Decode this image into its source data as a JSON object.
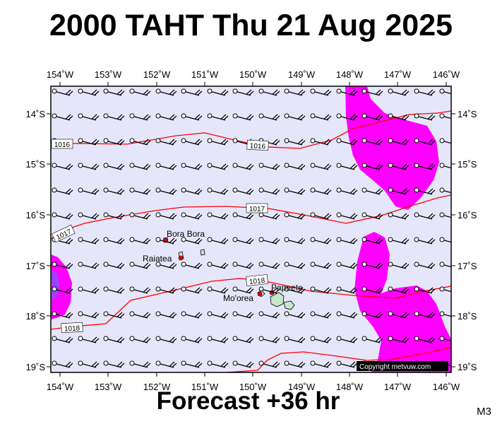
{
  "title": "2000 TAHT Thu 21 Aug 2025",
  "subtitle": "Forecast +36 hr",
  "model": "M3",
  "copyright": "Copyright metvuw.com",
  "colors": {
    "ocean": "#e6e6fa",
    "rain": "#ff00ff",
    "rain_heavy": "#a040ff",
    "isobar": "#ff0000",
    "land": "#c8e6c8"
  },
  "axes": {
    "top_lon_labels": [
      "154˚W",
      "153˚W",
      "152˚W",
      "151˚W",
      "150˚W",
      "149˚W",
      "148˚W",
      "147˚W",
      "146˚W"
    ],
    "bottom_lon_labels": [
      "154˚W",
      "153˚W",
      "152˚W",
      "151˚W",
      "150˚W",
      "149˚W",
      "148˚W",
      "147˚W",
      "146˚W"
    ],
    "left_lat_labels": [
      "14˚S",
      "15˚S",
      "16˚S",
      "17˚S",
      "18˚S",
      "19˚S"
    ],
    "right_lat_labels": [
      "14˚S",
      "15˚S",
      "16˚S",
      "17˚S",
      "18˚S",
      "19˚S"
    ]
  },
  "isobar_labels": [
    "1016",
    "1016",
    "1017",
    "1017",
    "1018",
    "1018"
  ],
  "places": [
    "Bora Bora",
    "Raiatea",
    "Mo'orea",
    "Papeete"
  ],
  "icons": [
    "wind-barb-icon",
    "station-dot-icon"
  ]
}
